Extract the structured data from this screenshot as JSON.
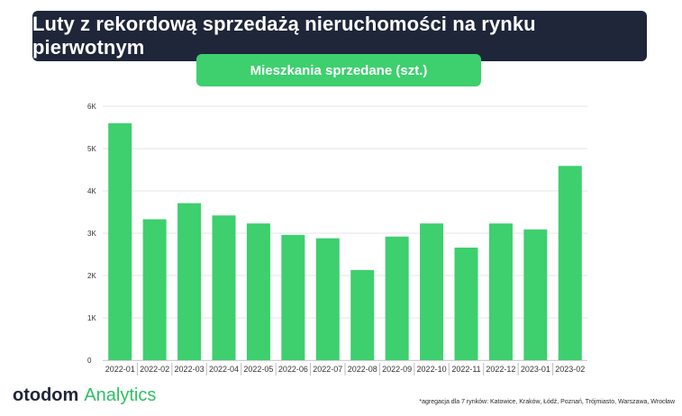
{
  "header": {
    "title": "Luty z rekordową sprzedażą nieruchomości na rynku pierwotnym",
    "subtitle": "Mieszkania sprzedane (szt.)"
  },
  "footer": {
    "logo_brand": "otodom",
    "logo_product": "Analytics",
    "footnote": "*agregacja dla 7 rynków: Katowice, Kraków, Łódź, Poznań, Trójmiasto, Warszawa, Wrocław"
  },
  "colors": {
    "bar": "#3ecf6e",
    "title_bg": "#1f2639",
    "accent": "#2fbf63"
  },
  "chart_data": {
    "type": "bar",
    "categories": [
      "2022-01",
      "2022-02",
      "2022-03",
      "2022-04",
      "2022-05",
      "2022-06",
      "2022-07",
      "2022-08",
      "2022-09",
      "2022-10",
      "2022-11",
      "2022-12",
      "2023-01",
      "2023-02"
    ],
    "values": [
      5600,
      3330,
      3710,
      3420,
      3230,
      2960,
      2880,
      2130,
      2920,
      3230,
      2660,
      3230,
      3090,
      4590
    ],
    "ylim": [
      0,
      6000
    ],
    "yticks": [
      0,
      1000,
      2000,
      3000,
      4000,
      5000,
      6000
    ],
    "ytick_labels": [
      "0",
      "1K",
      "2K",
      "3K",
      "4K",
      "5K",
      "6K"
    ],
    "xlabel": "",
    "ylabel": "",
    "grid": true
  }
}
